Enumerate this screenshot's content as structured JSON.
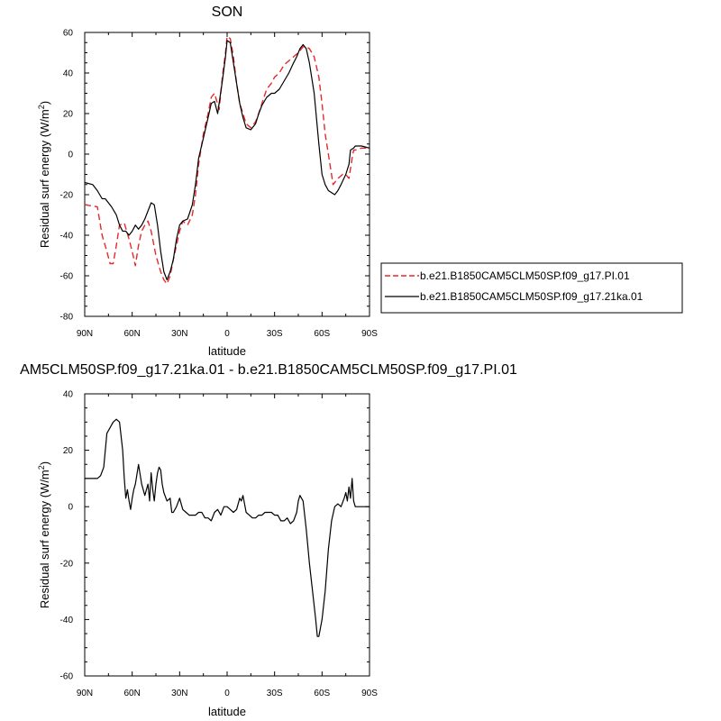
{
  "chart_data": [
    {
      "type": "line",
      "title": "SON",
      "xlabel": "latitude",
      "ylabel": "Residual surf energy (W/m²)",
      "ylabel_main": "Residual surf energy (W/m",
      "ylabel_sup": "2",
      "ylabel_close": ")",
      "xlim": [
        90,
        -90
      ],
      "ylim": [
        -80,
        60
      ],
      "x_ticks": [
        90,
        60,
        30,
        0,
        -30,
        -60,
        -90
      ],
      "x_tick_labels": [
        "90N",
        "60N",
        "30N",
        "0",
        "30S",
        "60S",
        "90S"
      ],
      "y_ticks": [
        -80,
        -60,
        -40,
        -20,
        0,
        20,
        40,
        60
      ],
      "y_tick_labels": [
        "-80",
        "-60",
        "-40",
        "-20",
        "0",
        "20",
        "40",
        "60"
      ],
      "grid": false,
      "legend": "outside-right",
      "series": [
        {
          "name": "b.e21.B1850CAM5CLM50SP.f09_g17.PI.01",
          "color": "#e8282a",
          "dash": "dashed",
          "x": [
            90,
            82,
            79,
            76,
            74,
            72,
            70,
            68,
            65,
            62,
            60,
            58,
            56,
            54,
            52,
            50,
            48,
            45,
            42,
            40,
            38,
            36,
            34,
            32,
            30,
            28,
            25,
            22,
            20,
            18,
            15,
            12,
            10,
            8,
            5,
            3,
            1,
            0,
            -2,
            -4,
            -6,
            -8,
            -10,
            -12,
            -15,
            -18,
            -20,
            -22,
            -25,
            -28,
            -30,
            -33,
            -36,
            -39,
            -42,
            -45,
            -48,
            -50,
            -52,
            -55,
            -58,
            -60,
            -62,
            -65,
            -67,
            -70,
            -73,
            -75,
            -77,
            -79,
            -80,
            -81,
            -85,
            -90
          ],
          "y": [
            -25,
            -26,
            -40,
            -48,
            -54,
            -54,
            -45,
            -35,
            -34,
            -42,
            -48,
            -55,
            -45,
            -38,
            -35,
            -33,
            -38,
            -50,
            -58,
            -62,
            -64,
            -60,
            -52,
            -45,
            -38,
            -33,
            -35,
            -30,
            -20,
            -5,
            10,
            20,
            28,
            30,
            22,
            38,
            50,
            58,
            57,
            48,
            35,
            25,
            20,
            15,
            13,
            16,
            20,
            25,
            32,
            35,
            38,
            40,
            44,
            46,
            48,
            50,
            53,
            53,
            52,
            48,
            38,
            25,
            10,
            -5,
            -15,
            -12,
            -10,
            -10,
            -12,
            -2,
            2,
            2,
            3,
            3
          ]
        },
        {
          "name": "b.e21.B1850CAM5CLM50SP.f09_g17.21ka.01",
          "color": "#000000",
          "dash": "solid",
          "x": [
            90,
            85,
            82,
            79,
            77,
            75,
            73,
            70,
            68,
            66,
            64,
            62,
            60,
            58,
            56,
            54,
            52,
            50,
            48,
            46,
            44,
            42,
            40,
            38,
            36,
            34,
            32,
            30,
            28,
            25,
            22,
            20,
            18,
            15,
            12,
            10,
            8,
            6,
            3,
            1,
            0,
            -2,
            -4,
            -6,
            -8,
            -10,
            -12,
            -15,
            -18,
            -20,
            -22,
            -25,
            -28,
            -30,
            -33,
            -36,
            -39,
            -42,
            -44,
            -46,
            -48,
            -50,
            -52,
            -55,
            -58,
            -60,
            -62,
            -64,
            -66,
            -68,
            -70,
            -72,
            -75,
            -77,
            -78,
            -80,
            -81,
            -85,
            -90
          ],
          "y": [
            -14,
            -15,
            -18,
            -22,
            -22,
            -24,
            -26,
            -30,
            -35,
            -38,
            -38,
            -40,
            -38,
            -35,
            -37,
            -35,
            -32,
            -28,
            -24,
            -25,
            -35,
            -48,
            -58,
            -62,
            -58,
            -52,
            -42,
            -35,
            -33,
            -32,
            -25,
            -15,
            -2,
            8,
            18,
            25,
            26,
            20,
            36,
            48,
            56,
            55,
            45,
            35,
            25,
            18,
            13,
            12,
            15,
            20,
            24,
            28,
            30,
            30,
            32,
            36,
            40,
            45,
            48,
            52,
            54,
            52,
            45,
            30,
            5,
            -10,
            -15,
            -18,
            -19,
            -20,
            -18,
            -15,
            -10,
            -5,
            2,
            3,
            4,
            4,
            3
          ]
        }
      ]
    },
    {
      "type": "line",
      "title": "AM5CLM50SP.f09_g17.21ka.01 - b.e21.B1850CAM5CLM50SP.f09_g17.PI.01",
      "xlabel": "latitude",
      "ylabel": "Residual surf energy (W/m²)",
      "ylabel_main": "Residual surf energy (W/m",
      "ylabel_sup": "2",
      "ylabel_close": ")",
      "xlim": [
        90,
        -90
      ],
      "ylim": [
        -60,
        40
      ],
      "x_ticks": [
        90,
        60,
        30,
        0,
        -30,
        -60,
        -90
      ],
      "x_tick_labels": [
        "90N",
        "60N",
        "30N",
        "0",
        "30S",
        "60S",
        "90S"
      ],
      "y_ticks": [
        -60,
        -40,
        -20,
        0,
        20,
        40
      ],
      "y_tick_labels": [
        "-60",
        "-40",
        "-20",
        "0",
        "20",
        "40"
      ],
      "grid": false,
      "series": [
        {
          "color": "#000000",
          "dash": "solid",
          "x": [
            90,
            85,
            82,
            80,
            78,
            76,
            74,
            72,
            70,
            68,
            66,
            65,
            64,
            63,
            62,
            61,
            60,
            59,
            58,
            56,
            54,
            52,
            50,
            49,
            48,
            47,
            46,
            45,
            44,
            43,
            42,
            41,
            40,
            38,
            36,
            35,
            34,
            32,
            30,
            28,
            26,
            24,
            22,
            20,
            18,
            16,
            14,
            12,
            10,
            8,
            6,
            4,
            2,
            0,
            -2,
            -4,
            -6,
            -8,
            -9,
            -10,
            -12,
            -14,
            -16,
            -18,
            -20,
            -22,
            -24,
            -26,
            -28,
            -30,
            -32,
            -34,
            -36,
            -38,
            -40,
            -42,
            -44,
            -45,
            -46,
            -48,
            -50,
            -52,
            -54,
            -56,
            -57,
            -58,
            -60,
            -62,
            -64,
            -66,
            -68,
            -70,
            -72,
            -74,
            -75,
            -76,
            -77,
            -78,
            -79,
            -80,
            -81,
            -85,
            -90
          ],
          "y": [
            10,
            10,
            10,
            11,
            14,
            26,
            28,
            30,
            31,
            30,
            20,
            10,
            3,
            6,
            2,
            -1,
            3,
            6,
            8,
            15,
            8,
            4,
            8,
            2,
            12,
            6,
            2,
            8,
            12,
            14,
            13,
            8,
            5,
            2,
            3,
            -2,
            -2,
            0,
            3,
            -1,
            -2,
            -3,
            -3,
            -3,
            -2,
            -2,
            -4,
            -4,
            -5,
            -2,
            -1,
            -3,
            0,
            0,
            -1,
            -2,
            -1,
            3,
            2,
            4,
            -2,
            -3,
            -4,
            -4,
            -3,
            -3,
            -2,
            -2,
            -2,
            -3,
            -3,
            -5,
            -5,
            -4,
            -6,
            -5,
            -2,
            2,
            4,
            2,
            -8,
            -20,
            -30,
            -40,
            -46,
            -46,
            -40,
            -30,
            -15,
            -5,
            0,
            1,
            0,
            3,
            5,
            2,
            7,
            3,
            10,
            2,
            0,
            0,
            0
          ]
        }
      ]
    }
  ]
}
